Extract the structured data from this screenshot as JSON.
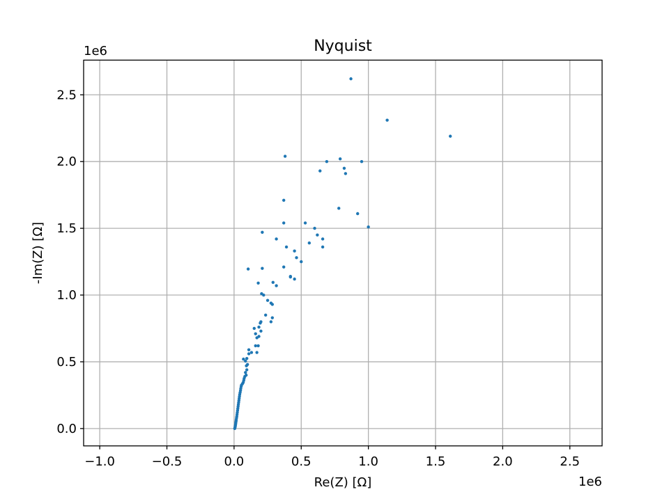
{
  "chart_data": {
    "type": "scatter",
    "title": "Nyquist",
    "xlabel": "Re(Z) [Ω]",
    "ylabel": "-Im(Z) [Ω]",
    "x_offset_text": "1e6",
    "y_offset_text": "1e6",
    "xlim": [
      -1.12,
      2.74
    ],
    "ylim": [
      -0.13,
      2.76
    ],
    "xticks": [
      -1.0,
      -0.5,
      0.0,
      0.5,
      1.0,
      1.5,
      2.0,
      2.5
    ],
    "xtick_labels": [
      "−1.0",
      "−0.5",
      "0.0",
      "0.5",
      "1.0",
      "1.5",
      "2.0",
      "2.5"
    ],
    "yticks": [
      0.0,
      0.5,
      1.0,
      1.5,
      2.0,
      2.5
    ],
    "ytick_labels": [
      "0.0",
      "0.5",
      "1.0",
      "1.5",
      "2.0",
      "2.5"
    ],
    "grid": true,
    "marker_color": "#1f77b4",
    "series": [
      {
        "points": [
          [
            0.005,
            0.0
          ],
          [
            0.007,
            0.008
          ],
          [
            0.009,
            0.016
          ],
          [
            0.01,
            0.025
          ],
          [
            0.012,
            0.035
          ],
          [
            0.013,
            0.045
          ],
          [
            0.015,
            0.055
          ],
          [
            0.016,
            0.065
          ],
          [
            0.018,
            0.078
          ],
          [
            0.02,
            0.09
          ],
          [
            0.022,
            0.105
          ],
          [
            0.024,
            0.12
          ],
          [
            0.026,
            0.135
          ],
          [
            0.028,
            0.15
          ],
          [
            0.03,
            0.165
          ],
          [
            0.032,
            0.18
          ],
          [
            0.034,
            0.195
          ],
          [
            0.036,
            0.21
          ],
          [
            0.038,
            0.225
          ],
          [
            0.04,
            0.24
          ],
          [
            0.042,
            0.255
          ],
          [
            0.045,
            0.27
          ],
          [
            0.048,
            0.285
          ],
          [
            0.05,
            0.3
          ],
          [
            0.053,
            0.315
          ],
          [
            0.055,
            0.325
          ],
          [
            0.062,
            0.335
          ],
          [
            0.068,
            0.345
          ],
          [
            0.072,
            0.36
          ],
          [
            0.075,
            0.375
          ],
          [
            0.08,
            0.39
          ],
          [
            0.09,
            0.4
          ],
          [
            0.085,
            0.42
          ],
          [
            0.095,
            0.44
          ],
          [
            0.092,
            0.47
          ],
          [
            0.1,
            0.48
          ],
          [
            0.085,
            0.505
          ],
          [
            0.07,
            0.52
          ],
          [
            0.095,
            0.525
          ],
          [
            0.11,
            0.56
          ],
          [
            0.11,
            0.59
          ],
          [
            0.13,
            0.57
          ],
          [
            0.17,
            0.57
          ],
          [
            0.18,
            0.62
          ],
          [
            0.16,
            0.62
          ],
          [
            0.17,
            0.68
          ],
          [
            0.16,
            0.71
          ],
          [
            0.15,
            0.75
          ],
          [
            0.185,
            0.69
          ],
          [
            0.2,
            0.73
          ],
          [
            0.185,
            0.76
          ],
          [
            0.195,
            0.79
          ],
          [
            0.2,
            0.8
          ],
          [
            0.235,
            0.85
          ],
          [
            0.275,
            0.8
          ],
          [
            0.285,
            0.83
          ],
          [
            0.25,
            0.96
          ],
          [
            0.275,
            0.94
          ],
          [
            0.285,
            0.93
          ],
          [
            0.205,
            1.01
          ],
          [
            0.22,
            1.0
          ],
          [
            0.18,
            1.09
          ],
          [
            0.29,
            1.095
          ],
          [
            0.315,
            1.07
          ],
          [
            0.42,
            1.14
          ],
          [
            0.45,
            1.12
          ],
          [
            0.37,
            1.21
          ],
          [
            0.21,
            1.2
          ],
          [
            0.105,
            1.195
          ],
          [
            0.42,
            1.135
          ],
          [
            0.5,
            1.25
          ],
          [
            0.465,
            1.28
          ],
          [
            0.45,
            1.33
          ],
          [
            0.39,
            1.36
          ],
          [
            0.315,
            1.42
          ],
          [
            0.56,
            1.39
          ],
          [
            0.62,
            1.45
          ],
          [
            0.66,
            1.42
          ],
          [
            0.66,
            1.36
          ],
          [
            0.21,
            1.47
          ],
          [
            0.37,
            1.54
          ],
          [
            0.53,
            1.54
          ],
          [
            0.6,
            1.5
          ],
          [
            0.37,
            1.71
          ],
          [
            0.78,
            1.65
          ],
          [
            0.92,
            1.61
          ],
          [
            1.0,
            1.51
          ],
          [
            0.38,
            2.04
          ],
          [
            0.64,
            1.93
          ],
          [
            0.69,
            2.0
          ],
          [
            0.79,
            2.02
          ],
          [
            0.82,
            1.95
          ],
          [
            0.83,
            1.91
          ],
          [
            0.95,
            2.0
          ],
          [
            0.87,
            2.62
          ],
          [
            1.14,
            2.31
          ],
          [
            1.61,
            2.19
          ]
        ]
      }
    ]
  }
}
